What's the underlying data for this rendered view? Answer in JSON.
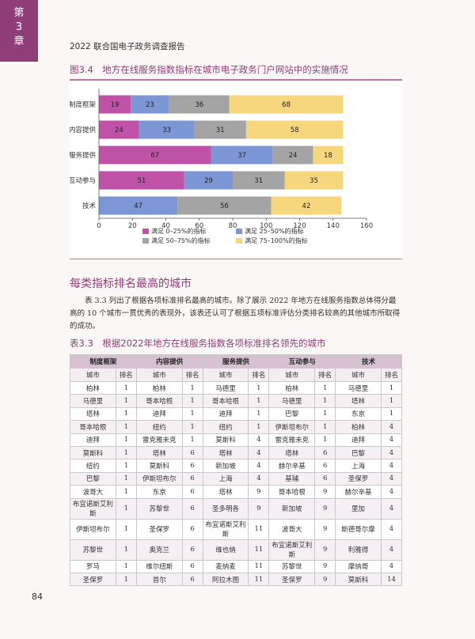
{
  "chapter": {
    "label": "第",
    "number": "3",
    "suffix": "章"
  },
  "header": {
    "title": "2022 联合国电子政务调查报告"
  },
  "figure": {
    "title": "图3.4　地方在线服务指数指标在城市电子政务门户网站中的实施情况"
  },
  "chart_data": {
    "type": "bar",
    "orientation": "horizontal",
    "stacked": true,
    "categories": [
      "制度框架",
      "内容提供",
      "服务提供",
      "互动参与",
      "技术"
    ],
    "series": [
      {
        "name": "满足 0–25%的指标",
        "color": "#c052a8",
        "values": [
          19,
          24,
          67,
          51,
          0
        ]
      },
      {
        "name": "满足 25–50%的指标",
        "color": "#7d97d6",
        "values": [
          23,
          33,
          37,
          29,
          47
        ]
      },
      {
        "name": "满足 50–75%的指标",
        "color": "#a4a4a4",
        "values": [
          36,
          31,
          24,
          31,
          56
        ]
      },
      {
        "name": "满足 75–100%的指标",
        "color": "#f7d77e",
        "values": [
          68,
          58,
          18,
          35,
          42
        ]
      }
    ],
    "xlim": [
      0,
      160
    ],
    "xticks": [
      0,
      20,
      40,
      60,
      80,
      100,
      120,
      140,
      160
    ],
    "legend": "bottom"
  },
  "section": {
    "heading": "每类指标排名最高的城市"
  },
  "body": {
    "text": "表 3.3 列出了根据各项标准排名最高的城市。除了展示 2022 年地方在线服务指数总体得分最高的 10 个城市一贯优秀的表现外，该表还认可了根据五项标准评估分类排名较高的其他城市所取得的成功。"
  },
  "table": {
    "title": "表3.3　根据2022年地方在线服务指数各项标准排名领先的城市",
    "groups": [
      "制度框架",
      "内容提供",
      "服务提供",
      "互动参与",
      "技术"
    ],
    "sub_city": "城市",
    "sub_rank": "排名",
    "rows": [
      [
        "柏林",
        "1",
        "柏林",
        "1",
        "马德里",
        "1",
        "柏林",
        "1",
        "马德里",
        "1"
      ],
      [
        "马德里",
        "1",
        "哥本哈根",
        "1",
        "哥本哈根",
        "1",
        "马德里",
        "1",
        "塔林",
        "1"
      ],
      [
        "塔林",
        "1",
        "迪拜",
        "1",
        "迪拜",
        "1",
        "巴黎",
        "1",
        "东京",
        "1"
      ],
      [
        "哥本哈根",
        "1",
        "纽约",
        "1",
        "纽约",
        "1",
        "伊斯坦布尔",
        "1",
        "柏林",
        "4"
      ],
      [
        "迪拜",
        "1",
        "雷克雅未克",
        "1",
        "莫斯科",
        "4",
        "雷克雅未克",
        "1",
        "迪拜",
        "4"
      ],
      [
        "莫斯科",
        "1",
        "塔林",
        "6",
        "塔林",
        "4",
        "塔林",
        "6",
        "巴黎",
        "4"
      ],
      [
        "纽约",
        "1",
        "莫斯科",
        "6",
        "新加坡",
        "4",
        "赫尔辛基",
        "6",
        "上海",
        "4"
      ],
      [
        "巴黎",
        "1",
        "伊斯坦布尔",
        "6",
        "上海",
        "4",
        "基辅",
        "6",
        "圣保罗",
        "4"
      ],
      [
        "波哥大",
        "1",
        "东京",
        "6",
        "塔林",
        "9",
        "哥本哈根",
        "9",
        "赫尔辛基",
        "4"
      ],
      [
        "布宜诺斯艾利斯",
        "1",
        "苏黎世",
        "6",
        "圣多明各",
        "9",
        "新加坡",
        "9",
        "里加",
        "4"
      ],
      [
        "伊斯坦布尔",
        "1",
        "圣保罗",
        "6",
        "布宜诺斯艾利斯",
        "11",
        "波哥大",
        "9",
        "斯德哥尔摩",
        "4"
      ],
      [
        "苏黎世",
        "1",
        "奥克兰",
        "6",
        "维也纳",
        "11",
        "布宜诺斯艾利斯",
        "9",
        "利雅得",
        "4"
      ],
      [
        "罗马",
        "1",
        "维尔纽斯",
        "6",
        "麦纳麦",
        "11",
        "苏黎世",
        "9",
        "摩纳哥",
        "4"
      ],
      [
        "圣保罗",
        "1",
        "首尔",
        "6",
        "阿拉木图",
        "11",
        "圣保罗",
        "9",
        "莫斯科",
        "14"
      ]
    ],
    "tall_rows": [
      9,
      10,
      11
    ]
  },
  "page": {
    "number": "84"
  }
}
